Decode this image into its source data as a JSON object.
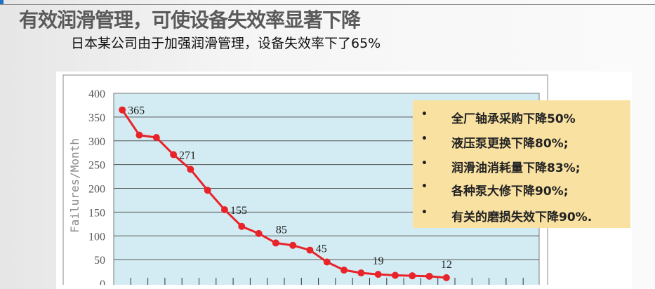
{
  "header": {
    "title": "有效润滑管理，可使设备失效率显著下降",
    "subtitle": "日本某公司由于加强润滑管理，设备失效率下了65%"
  },
  "legend_box": {
    "items": [
      "全厂轴承采购下降50%",
      "液压泵更换下降80%;",
      "润滑油消耗量下降83%;",
      "各种泵大修下降90%;",
      "有关的磨损失效下降90%."
    ],
    "bullet": "•"
  },
  "chart_data": {
    "type": "line",
    "ylabel": "Failures/Month",
    "xlabel": "",
    "ylim": [
      0,
      400
    ],
    "yticks": [
      "0",
      "50",
      "100",
      "150",
      "200",
      "250",
      "300",
      "350",
      "400"
    ],
    "grid": true,
    "x": [
      1,
      2,
      3,
      4,
      5,
      6,
      7,
      8,
      9,
      10,
      11,
      12,
      13,
      14,
      15,
      16,
      17,
      18,
      19,
      20
    ],
    "values": [
      365,
      312,
      307,
      271,
      240,
      196,
      155,
      120,
      105,
      85,
      80,
      70,
      45,
      28,
      22,
      19,
      17,
      16,
      15,
      12
    ],
    "data_labels": [
      {
        "index": 0,
        "text": "365"
      },
      {
        "index": 3,
        "text": "271"
      },
      {
        "index": 6,
        "text": "155"
      },
      {
        "index": 9,
        "text": "85"
      },
      {
        "index": 12,
        "text": "45"
      },
      {
        "index": 15,
        "text": "19"
      },
      {
        "index": 19,
        "text": "12"
      }
    ],
    "line_color": "#e8232a",
    "plot_bg": "#d3ecf3"
  }
}
